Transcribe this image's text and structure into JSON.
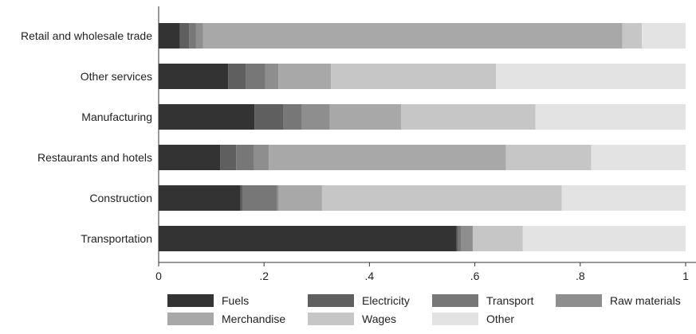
{
  "chart_data": {
    "type": "bar",
    "orientation": "horizontal",
    "stacked": true,
    "title": "",
    "xlabel": "",
    "ylabel": "",
    "xlim": [
      0,
      1
    ],
    "x_ticks": [
      0,
      0.2,
      0.4,
      0.6,
      0.8,
      1
    ],
    "x_tick_labels": [
      "0",
      ".2",
      ".4",
      ".6",
      ".8",
      "1"
    ],
    "grid": false,
    "legend_position": "bottom",
    "categories": [
      "Retail and wholesale trade",
      "Other services",
      "Manufacturing",
      "Restaurants and hotels",
      "Construction",
      "Transportation"
    ],
    "series": [
      {
        "name": "Fuels",
        "color": "#333333",
        "values": [
          0.04,
          0.132,
          0.182,
          0.117,
          0.155,
          0.565
        ]
      },
      {
        "name": "Electricity",
        "color": "#5f5f5f",
        "values": [
          0.018,
          0.033,
          0.055,
          0.03,
          0.005,
          0.003
        ]
      },
      {
        "name": "Transport",
        "color": "#777777",
        "values": [
          0.013,
          0.037,
          0.035,
          0.034,
          0.065,
          0.006
        ]
      },
      {
        "name": "Raw materials",
        "color": "#8e8e8e",
        "values": [
          0.013,
          0.025,
          0.053,
          0.028,
          0.003,
          0.022
        ]
      },
      {
        "name": "Merchandise",
        "color": "#a8a8a8",
        "values": [
          0.796,
          0.1,
          0.135,
          0.45,
          0.082,
          0.0
        ]
      },
      {
        "name": "Wages",
        "color": "#c6c6c6",
        "values": [
          0.037,
          0.313,
          0.255,
          0.162,
          0.455,
          0.095
        ]
      },
      {
        "name": "Other",
        "color": "#e3e3e3",
        "values": [
          0.083,
          0.36,
          0.285,
          0.179,
          0.235,
          0.309
        ]
      }
    ]
  }
}
